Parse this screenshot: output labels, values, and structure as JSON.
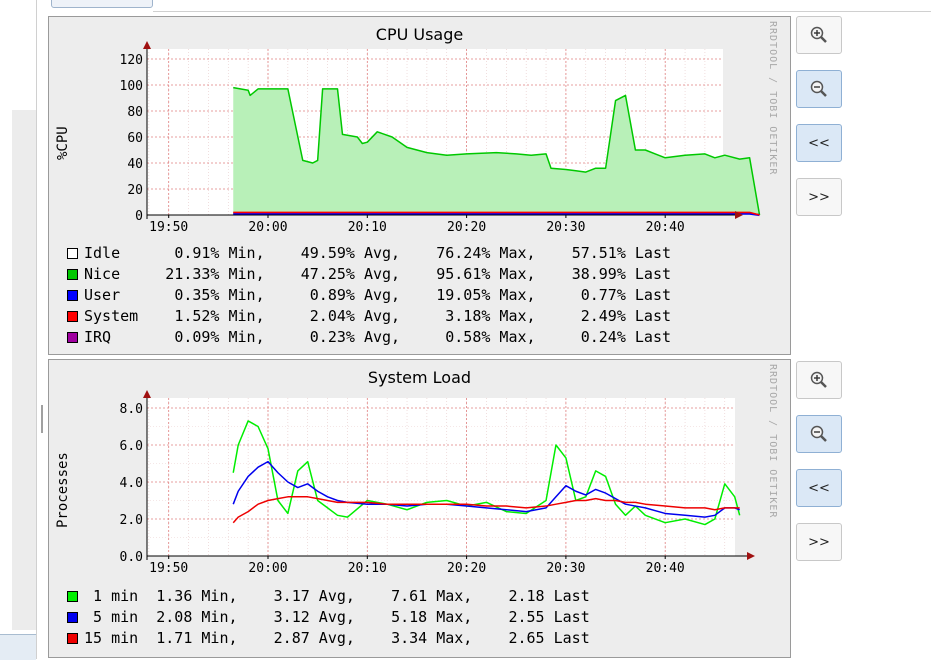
{
  "nav": {
    "zoom_in_icon": "zoom-in-icon",
    "zoom_out_icon": "zoom-out-icon",
    "back_label": "<<",
    "forward_label": ">>"
  },
  "watermark": "RRDTOOL / TOBI OETIKER",
  "colors": {
    "idle": "#ffffff",
    "nice": "#00c800",
    "nice_fill": "#b8f0b8",
    "user": "#0000ff",
    "system": "#ff0000",
    "irq": "#a000a0",
    "load_1": "#00ee00",
    "load_5": "#0000ee",
    "load_15": "#ee0000"
  },
  "chart_data": [
    {
      "type": "area",
      "title": "CPU Usage",
      "ylabel": "%CPU",
      "xlabel": "",
      "ylim": [
        0,
        120
      ],
      "y_ticks": [
        "0",
        "20",
        "40",
        "60",
        "80",
        "100",
        "120"
      ],
      "x_ticks": [
        "19:50",
        "20:00",
        "20:10",
        "20:20",
        "20:30",
        "20:40"
      ],
      "x_minutes": [
        -3.5,
        -2,
        -1.8,
        -1,
        0,
        2,
        3.5,
        4.5,
        5,
        5.5,
        7,
        7.5,
        9,
        9.5,
        10,
        11,
        12.5,
        14,
        16,
        18,
        20,
        23,
        25,
        26.5,
        28,
        28.5,
        30,
        31,
        32,
        33,
        34,
        35,
        36,
        37,
        38,
        39,
        40,
        42,
        44,
        45,
        46,
        47.5,
        48.5,
        49.5
      ],
      "grid": true,
      "legend_position": "bottom",
      "series": [
        {
          "name": "Nice",
          "values": [
            98,
            96,
            92,
            97,
            97,
            97,
            42,
            40,
            42,
            97,
            97,
            62,
            60,
            55,
            56,
            64,
            60,
            52,
            48,
            46,
            47,
            48,
            47,
            46,
            47,
            36,
            35,
            34,
            33,
            36,
            36,
            88,
            92,
            50,
            50,
            47,
            44,
            46,
            47,
            44,
            46,
            43,
            44,
            0
          ]
        },
        {
          "name": "User",
          "values": [
            1,
            1,
            1,
            1,
            1,
            1,
            1,
            1,
            1,
            1,
            1,
            1,
            1,
            1,
            1,
            1,
            1,
            1,
            1,
            1,
            1,
            1,
            1,
            1,
            1,
            1,
            1,
            1,
            1,
            1,
            1,
            1,
            1,
            1,
            1,
            1,
            1,
            1,
            1,
            1,
            1,
            1,
            1,
            0
          ]
        },
        {
          "name": "System",
          "values": [
            2,
            2,
            2,
            2,
            2,
            2,
            2,
            2,
            2,
            2,
            2,
            2,
            2,
            2,
            2,
            2,
            2,
            2,
            2,
            2,
            2,
            2,
            2,
            2,
            2,
            2,
            2,
            2,
            2,
            2,
            2,
            2,
            2,
            2,
            2,
            2,
            2,
            2,
            2,
            2,
            2,
            2,
            2,
            0
          ]
        }
      ],
      "legend": [
        {
          "name": "Idle",
          "color": "#ffffff",
          "min": "0.91%",
          "avg": "49.59%",
          "max": "76.24%",
          "last": "57.51%"
        },
        {
          "name": "Nice",
          "color": "#00c800",
          "min": "21.33%",
          "avg": "47.25%",
          "max": "95.61%",
          "last": "38.99%"
        },
        {
          "name": "User",
          "color": "#0000ff",
          "min": "0.35%",
          "avg": "0.89%",
          "max": "19.05%",
          "last": "0.77%"
        },
        {
          "name": "System",
          "color": "#ff0000",
          "min": "1.52%",
          "avg": "2.04%",
          "max": "3.18%",
          "last": "2.49%"
        },
        {
          "name": "IRQ",
          "color": "#a000a0",
          "min": "0.09%",
          "avg": "0.23%",
          "max": "0.58%",
          "last": "0.24%"
        }
      ]
    },
    {
      "type": "line",
      "title": "System Load",
      "ylabel": "Processes",
      "xlabel": "",
      "ylim": [
        0,
        8
      ],
      "y_ticks": [
        "0.0",
        "2.0",
        "4.0",
        "6.0",
        "8.0"
      ],
      "x_ticks": [
        "19:50",
        "20:00",
        "20:10",
        "20:20",
        "20:30",
        "20:40"
      ],
      "x_minutes": [
        -3.5,
        -3,
        -2,
        -1,
        0,
        1,
        2,
        3,
        4,
        5,
        6,
        7,
        8,
        10,
        12,
        14,
        16,
        18,
        20,
        22,
        24,
        26,
        28,
        29,
        30,
        31,
        32,
        33,
        34,
        35,
        36,
        37,
        38,
        40,
        42,
        44,
        45,
        46,
        47,
        47.5
      ],
      "grid": true,
      "legend_position": "bottom",
      "series": [
        {
          "name": "1 min",
          "values": [
            4.5,
            6.0,
            7.3,
            7.0,
            5.8,
            3.0,
            2.3,
            4.6,
            5.1,
            3.0,
            2.6,
            2.2,
            2.1,
            3.0,
            2.8,
            2.5,
            2.9,
            3.0,
            2.7,
            2.9,
            2.4,
            2.3,
            3.0,
            6.0,
            5.3,
            3.0,
            3.2,
            4.6,
            4.3,
            2.8,
            2.2,
            2.7,
            2.2,
            1.8,
            2.0,
            1.7,
            2.0,
            3.9,
            3.2,
            2.2
          ]
        },
        {
          "name": "5 min",
          "values": [
            2.8,
            3.5,
            4.3,
            4.8,
            5.1,
            4.5,
            4.0,
            3.7,
            3.9,
            3.5,
            3.2,
            3.0,
            2.9,
            2.8,
            2.8,
            2.7,
            2.8,
            2.8,
            2.7,
            2.6,
            2.5,
            2.4,
            2.6,
            3.2,
            3.8,
            3.5,
            3.3,
            3.6,
            3.4,
            3.1,
            2.8,
            2.7,
            2.6,
            2.3,
            2.2,
            2.1,
            2.2,
            2.6,
            2.6,
            2.5
          ]
        },
        {
          "name": "15 min",
          "values": [
            1.8,
            2.1,
            2.4,
            2.8,
            3.0,
            3.1,
            3.2,
            3.2,
            3.2,
            3.1,
            3.0,
            2.9,
            2.9,
            2.9,
            2.8,
            2.8,
            2.8,
            2.8,
            2.8,
            2.7,
            2.7,
            2.6,
            2.7,
            2.8,
            2.9,
            3.0,
            3.0,
            3.1,
            3.0,
            3.0,
            2.9,
            2.9,
            2.8,
            2.7,
            2.6,
            2.6,
            2.5,
            2.6,
            2.6,
            2.6
          ]
        }
      ],
      "legend": [
        {
          "name": "1 min",
          "color": "#00ee00",
          "min": "1.36",
          "avg": "3.17",
          "max": "7.61",
          "last": "2.18"
        },
        {
          "name": "5 min",
          "color": "#0000ee",
          "min": "2.08",
          "avg": "3.12",
          "max": "5.18",
          "last": "2.55"
        },
        {
          "name": "15 min",
          "color": "#ee0000",
          "min": "1.71",
          "avg": "2.87",
          "max": "3.34",
          "last": "2.65"
        }
      ]
    }
  ]
}
